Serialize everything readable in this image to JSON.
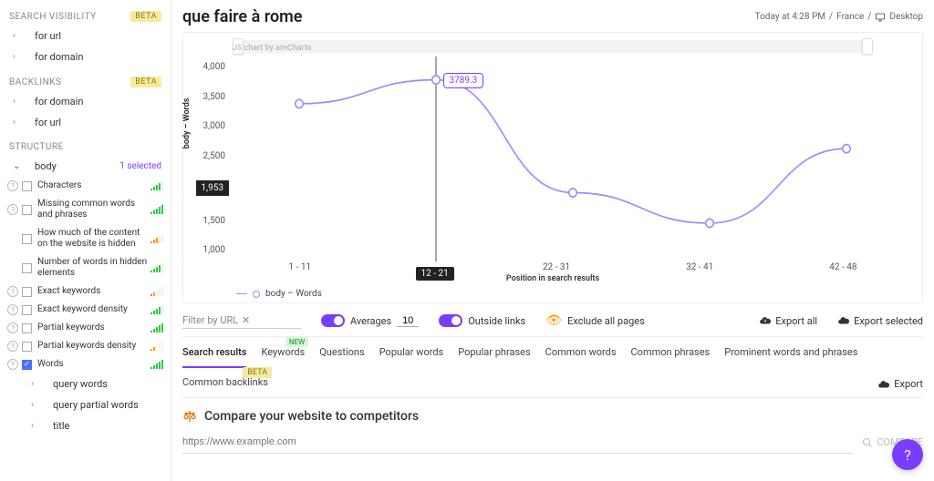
{
  "colors": {
    "accent": "#7a3cff",
    "line": "#9b8cff",
    "badge_beta_bg": "#f7e9a0",
    "badge_new_bg": "#d4f7d4"
  },
  "sidebar": {
    "sections": [
      {
        "title": "SEARCH VISIBILITY",
        "badge": "BETA",
        "items": [
          {
            "label": "for url"
          },
          {
            "label": "for domain"
          }
        ]
      },
      {
        "title": "BACKLINKS",
        "badge": "BETA",
        "items": [
          {
            "label": "for domain"
          },
          {
            "label": "for url"
          }
        ]
      }
    ],
    "structure": {
      "title": "STRUCTURE",
      "body_label": "body",
      "selected_note": "1 selected",
      "items": [
        {
          "label": "Characters",
          "bars": 4,
          "style": "green",
          "checked": false
        },
        {
          "label": "Missing common words and phrases",
          "bars": 5,
          "style": "green",
          "checked": false
        },
        {
          "label": "How much of the content on the website is hidden",
          "bars": 3,
          "style": "orange",
          "checked": false,
          "noq": true
        },
        {
          "label": "Number of words in hidden elements",
          "bars": 4,
          "style": "green",
          "checked": false,
          "noq": true
        },
        {
          "label": "Exact keywords",
          "bars": 2,
          "style": "mix",
          "checked": false
        },
        {
          "label": "Exact keyword density",
          "bars": 4,
          "style": "green",
          "checked": false
        },
        {
          "label": "Partial keywords",
          "bars": 5,
          "style": "green",
          "checked": false
        },
        {
          "label": "Partial keywords density",
          "bars": 2,
          "style": "orange",
          "checked": false
        },
        {
          "label": "Words",
          "bars": 5,
          "style": "green",
          "checked": true
        }
      ],
      "sub": [
        "query words",
        "query partial words",
        "title"
      ]
    }
  },
  "page": {
    "title": "que faire à rome",
    "meta_time": "Today at 4:28 PM",
    "meta_country": "France",
    "meta_device": "Desktop"
  },
  "chart": {
    "type": "line",
    "credit": "JS chart by amCharts",
    "y_label": "body – Words",
    "x_label": "Position in search results",
    "ylim": [
      1000,
      4000
    ],
    "ytick_step": 500,
    "y_ticks": [
      "4,000",
      "3,500",
      "3,000",
      "2,500",
      "2,000",
      "1,500",
      "1,000"
    ],
    "y_highlight": "1,953",
    "x_categories": [
      "1 - 11",
      "12 - 21",
      "22 - 31",
      "32 - 41",
      "42 - 48"
    ],
    "values": [
      3400,
      3789.3,
      1953,
      1458,
      2670
    ],
    "tooltip_value": "3789.3",
    "highlight_x_index": 1,
    "legend": "body – Words",
    "line_color": "#9b8cff",
    "marker_color": "#9b8cff",
    "marker_fill": "#ffffff",
    "background_color": "#ffffff"
  },
  "controls": {
    "filter_placeholder": "Filter by URL",
    "averages_label": "Averages",
    "averages_value": "10",
    "outside_label": "Outside links",
    "exclude_label": "Exclude all pages",
    "export_all": "Export all",
    "export_selected": "Export selected"
  },
  "tabs": {
    "items": [
      "Search results",
      "Keywords",
      "Questions",
      "Popular words",
      "Popular phrases",
      "Common words",
      "Common phrases",
      "Prominent words and phrases",
      "Common backlinks"
    ],
    "active_index": 0,
    "keywords_badge": "NEW",
    "backlinks_badge": "BETA",
    "export": "Export"
  },
  "compare": {
    "title": "Compare your website to competitors",
    "placeholder": "https://www.example.com",
    "button": "COMPARE"
  }
}
